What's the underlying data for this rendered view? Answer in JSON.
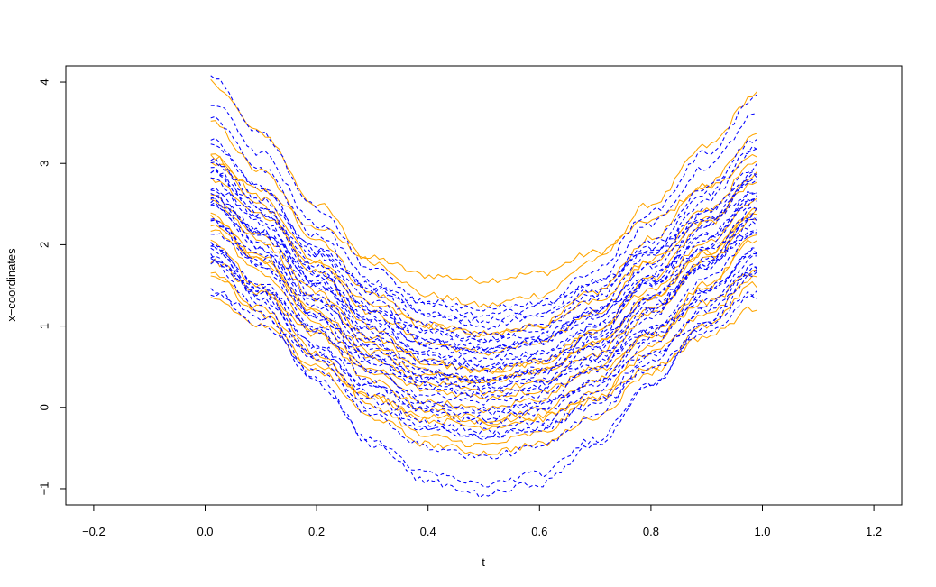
{
  "chart_data": {
    "type": "line",
    "title": "",
    "xlabel": "t",
    "ylabel": "x−coordinates",
    "xlim": [
      -0.25,
      1.25
    ],
    "ylim": [
      -1.2,
      4.2
    ],
    "x_ticks": [
      -0.2,
      0.0,
      0.2,
      0.4,
      0.6,
      0.8,
      1.0,
      1.2
    ],
    "x_tick_labels": [
      "−0.2",
      "0.0",
      "0.2",
      "0.4",
      "0.6",
      "0.8",
      "1.0",
      "1.2"
    ],
    "y_ticks": [
      -1,
      0,
      1,
      2,
      3,
      4
    ],
    "y_tick_labels": [
      "−1",
      "0",
      "1",
      "2",
      "3",
      "4"
    ],
    "grid": false,
    "legend": "none",
    "curve_template": {
      "t": [
        0.01,
        0.1,
        0.2,
        0.3,
        0.4,
        0.5,
        0.6,
        0.7,
        0.8,
        0.9,
        0.99
      ],
      "shape": [
        2.0,
        1.38,
        0.52,
        -0.18,
        -0.58,
        -0.7,
        -0.56,
        -0.12,
        0.58,
        1.3,
        1.95
      ],
      "note_free": true
    },
    "series": [
      {
        "color": "#FFA500",
        "style": "solid",
        "offset": 1.95,
        "scale": 0.55,
        "tilt": 0.05
      },
      {
        "color": "#FFA500",
        "style": "solid",
        "offset": 1.95,
        "scale": 1.0,
        "tilt": -0.05
      },
      {
        "color": "#FFA500",
        "style": "solid",
        "offset": 1.55,
        "scale": 0.95,
        "tilt": -0.05
      },
      {
        "color": "#FFA500",
        "style": "solid",
        "offset": 1.3,
        "scale": 0.9,
        "tilt": -0.05
      },
      {
        "color": "#FFA500",
        "style": "solid",
        "offset": 1.1,
        "scale": 0.95,
        "tilt": -0.1
      },
      {
        "color": "#FFA500",
        "style": "solid",
        "offset": 1.0,
        "scale": 0.8,
        "tilt": 0.0
      },
      {
        "color": "#FFA500",
        "style": "solid",
        "offset": 0.9,
        "scale": 0.8,
        "tilt": -0.05
      },
      {
        "color": "#FFA500",
        "style": "solid",
        "offset": 0.75,
        "scale": 0.8,
        "tilt": 0.0
      },
      {
        "color": "#FFA500",
        "style": "solid",
        "offset": 0.6,
        "scale": 0.9,
        "tilt": 0.05
      },
      {
        "color": "#FFA500",
        "style": "solid",
        "offset": 0.45,
        "scale": 0.85,
        "tilt": -0.05
      },
      {
        "color": "#FFA500",
        "style": "solid",
        "offset": 0.25,
        "scale": 0.7,
        "tilt": 0.0
      },
      {
        "color": "#FFA500",
        "style": "solid",
        "offset": 0.2,
        "scale": 0.95,
        "tilt": 0.05
      },
      {
        "color": "#FFA500",
        "style": "solid",
        "offset": 0.2,
        "scale": 0.55,
        "tilt": -0.05
      },
      {
        "color": "#FFA500",
        "style": "solid",
        "offset": 0.0,
        "scale": 0.8,
        "tilt": -0.05
      },
      {
        "color": "#FFA500",
        "style": "solid",
        "offset": 0.85,
        "scale": 0.75,
        "tilt": 0.1
      },
      {
        "color": "#FFA500",
        "style": "solid",
        "offset": 1.4,
        "scale": 0.7,
        "tilt": 0.0
      },
      {
        "color": "#FFA500",
        "style": "solid",
        "offset": 0.55,
        "scale": 0.6,
        "tilt": -0.05
      },
      {
        "color": "#0000FF",
        "style": "dashed",
        "offset": 1.85,
        "scale": 1.05,
        "tilt": -0.1
      },
      {
        "color": "#0000FF",
        "style": "dashed",
        "offset": 1.7,
        "scale": 1.0,
        "tilt": -0.05
      },
      {
        "color": "#0000FF",
        "style": "dashed",
        "offset": 1.55,
        "scale": 0.95,
        "tilt": -0.1
      },
      {
        "color": "#0000FF",
        "style": "dashed",
        "offset": 1.55,
        "scale": 0.7,
        "tilt": -0.05
      },
      {
        "color": "#0000FF",
        "style": "dashed",
        "offset": 1.45,
        "scale": 0.9,
        "tilt": 0.0
      },
      {
        "color": "#0000FF",
        "style": "dashed",
        "offset": 1.35,
        "scale": 0.95,
        "tilt": -0.05
      },
      {
        "color": "#0000FF",
        "style": "dashed",
        "offset": 1.3,
        "scale": 0.8,
        "tilt": -0.05
      },
      {
        "color": "#0000FF",
        "style": "dashed",
        "offset": 1.25,
        "scale": 0.85,
        "tilt": 0.05
      },
      {
        "color": "#0000FF",
        "style": "dashed",
        "offset": 1.2,
        "scale": 0.7,
        "tilt": 0.0
      },
      {
        "color": "#0000FF",
        "style": "dashed",
        "offset": 1.15,
        "scale": 0.9,
        "tilt": -0.1
      },
      {
        "color": "#0000FF",
        "style": "dashed",
        "offset": 1.1,
        "scale": 0.75,
        "tilt": 0.0
      },
      {
        "color": "#0000FF",
        "style": "dashed",
        "offset": 1.05,
        "scale": 0.85,
        "tilt": -0.05
      },
      {
        "color": "#0000FF",
        "style": "dashed",
        "offset": 1.0,
        "scale": 0.95,
        "tilt": 0.0
      },
      {
        "color": "#0000FF",
        "style": "dashed",
        "offset": 0.95,
        "scale": 0.65,
        "tilt": -0.05
      },
      {
        "color": "#0000FF",
        "style": "dashed",
        "offset": 0.9,
        "scale": 0.8,
        "tilt": 0.0
      },
      {
        "color": "#0000FF",
        "style": "dashed",
        "offset": 0.85,
        "scale": 0.9,
        "tilt": -0.05
      },
      {
        "color": "#0000FF",
        "style": "dashed",
        "offset": 0.8,
        "scale": 0.7,
        "tilt": 0.05
      },
      {
        "color": "#0000FF",
        "style": "dashed",
        "offset": 0.75,
        "scale": 0.85,
        "tilt": -0.05
      },
      {
        "color": "#0000FF",
        "style": "dashed",
        "offset": 0.7,
        "scale": 0.8,
        "tilt": 0.0
      },
      {
        "color": "#0000FF",
        "style": "dashed",
        "offset": 0.6,
        "scale": 0.95,
        "tilt": -0.05
      },
      {
        "color": "#0000FF",
        "style": "dashed",
        "offset": 0.55,
        "scale": 0.7,
        "tilt": 0.0
      },
      {
        "color": "#0000FF",
        "style": "dashed",
        "offset": 0.45,
        "scale": 0.9,
        "tilt": -0.05
      },
      {
        "color": "#0000FF",
        "style": "dashed",
        "offset": 0.4,
        "scale": 0.75,
        "tilt": 0.05
      },
      {
        "color": "#0000FF",
        "style": "dashed",
        "offset": 0.3,
        "scale": 0.85,
        "tilt": 0.0
      },
      {
        "color": "#0000FF",
        "style": "dashed",
        "offset": 0.2,
        "scale": 0.8,
        "tilt": -0.05
      },
      {
        "color": "#0000FF",
        "style": "dashed",
        "offset": 0.05,
        "scale": 0.95,
        "tilt": -0.05
      },
      {
        "color": "#0000FF",
        "style": "dashed",
        "offset": -0.25,
        "scale": 1.0,
        "tilt": -0.05
      },
      {
        "color": "#0000FF",
        "style": "dashed",
        "offset": -0.3,
        "scale": 1.1,
        "tilt": -0.1
      },
      {
        "color": "#0000FF",
        "style": "dashed",
        "offset": 1.6,
        "scale": 0.55,
        "tilt": 0.0
      },
      {
        "color": "#0000FF",
        "style": "dashed",
        "offset": 0.35,
        "scale": 0.55,
        "tilt": 0.0
      },
      {
        "color": "#0000FF",
        "style": "dashed",
        "offset": 1.25,
        "scale": 0.6,
        "tilt": -0.1
      },
      {
        "color": "#0000FF",
        "style": "dashed",
        "offset": 0.1,
        "scale": 0.65,
        "tilt": 0.0
      },
      {
        "color": "#0000FF",
        "style": "dashed",
        "offset": 0.65,
        "scale": 0.55,
        "tilt": -0.05
      }
    ]
  }
}
